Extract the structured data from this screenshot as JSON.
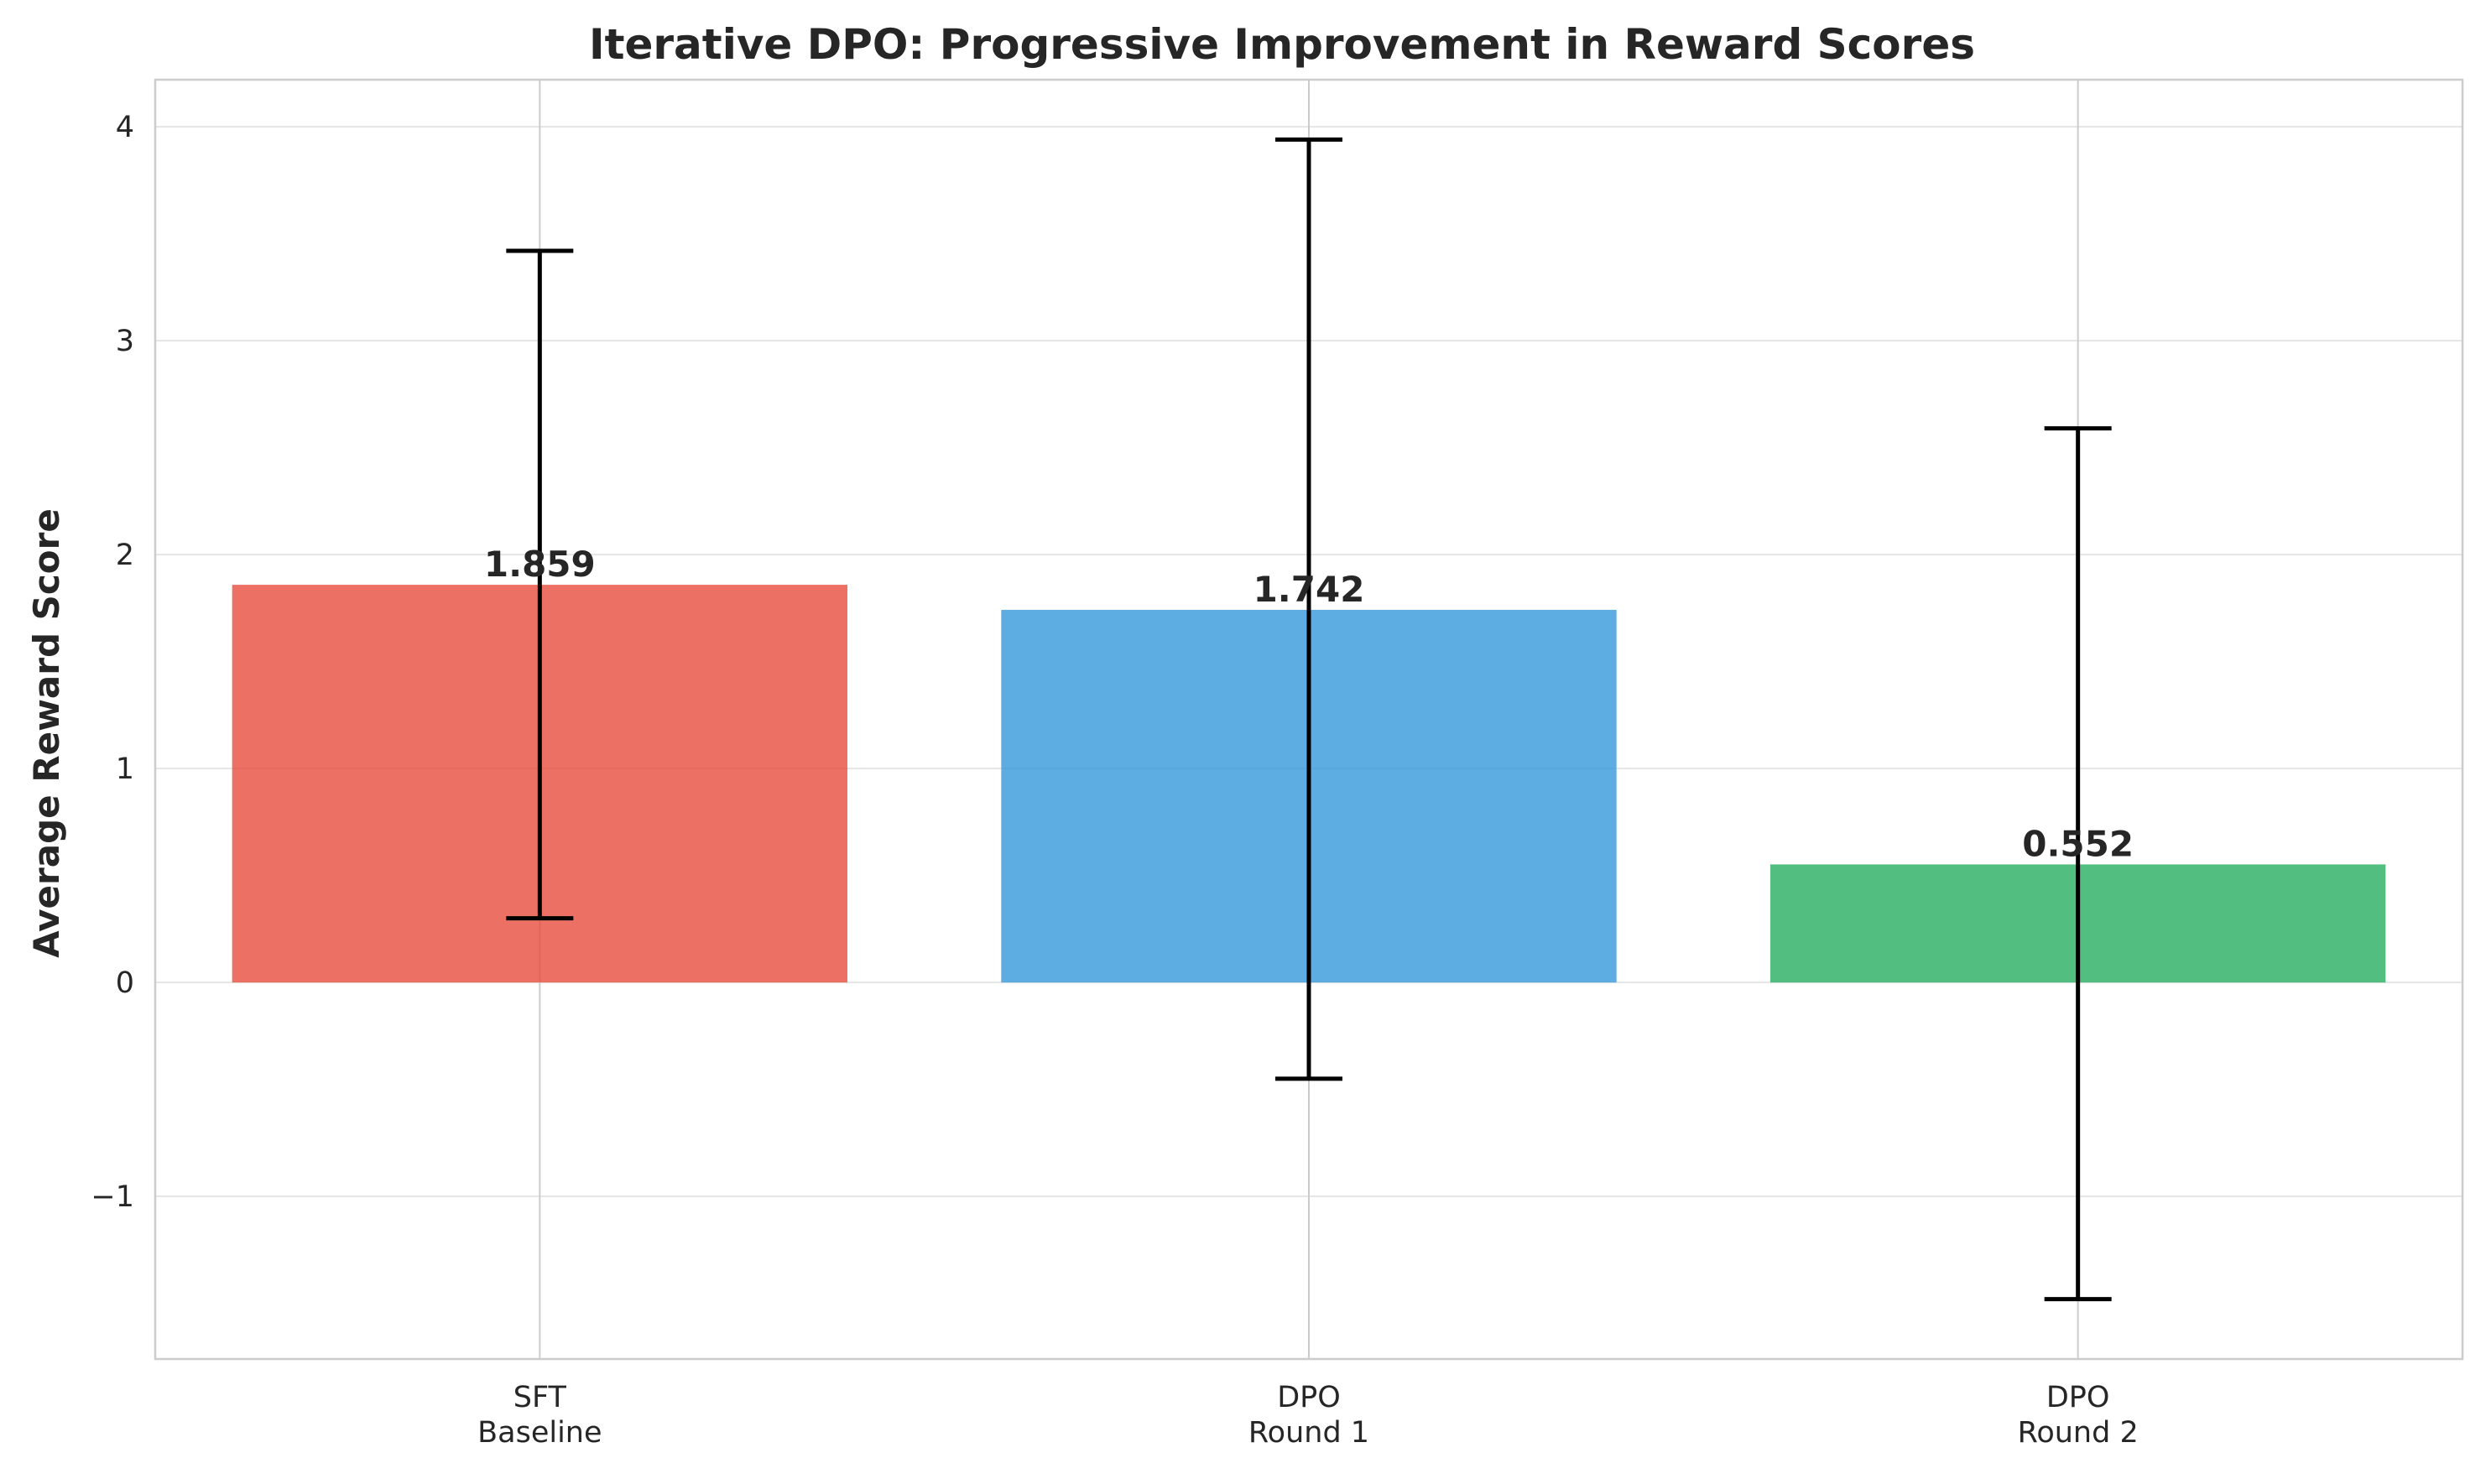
{
  "chart_data": {
    "type": "bar",
    "title": "Iterative DPO: Progressive Improvement in Reward Scores",
    "xlabel": "",
    "ylabel": "Average Reward Score",
    "categories": [
      [
        "SFT",
        "Baseline"
      ],
      [
        "DPO",
        "Round 1"
      ],
      [
        "DPO",
        "Round 2"
      ]
    ],
    "values": [
      1.859,
      1.742,
      0.552
    ],
    "value_labels": [
      "1.859",
      "1.742",
      "0.552"
    ],
    "error_low": [
      0.3,
      -0.45,
      -1.48
    ],
    "error_high": [
      3.42,
      3.94,
      2.59
    ],
    "colors": [
      "#e74c3c",
      "#3498db",
      "#27ae60"
    ],
    "ylim": [
      -1.76,
      4.22
    ],
    "yticks": [
      -1,
      0,
      1,
      2,
      3,
      4
    ],
    "ytick_labels": [
      "−1",
      "0",
      "1",
      "2",
      "3",
      "4"
    ],
    "grid": true,
    "legend": "none"
  }
}
